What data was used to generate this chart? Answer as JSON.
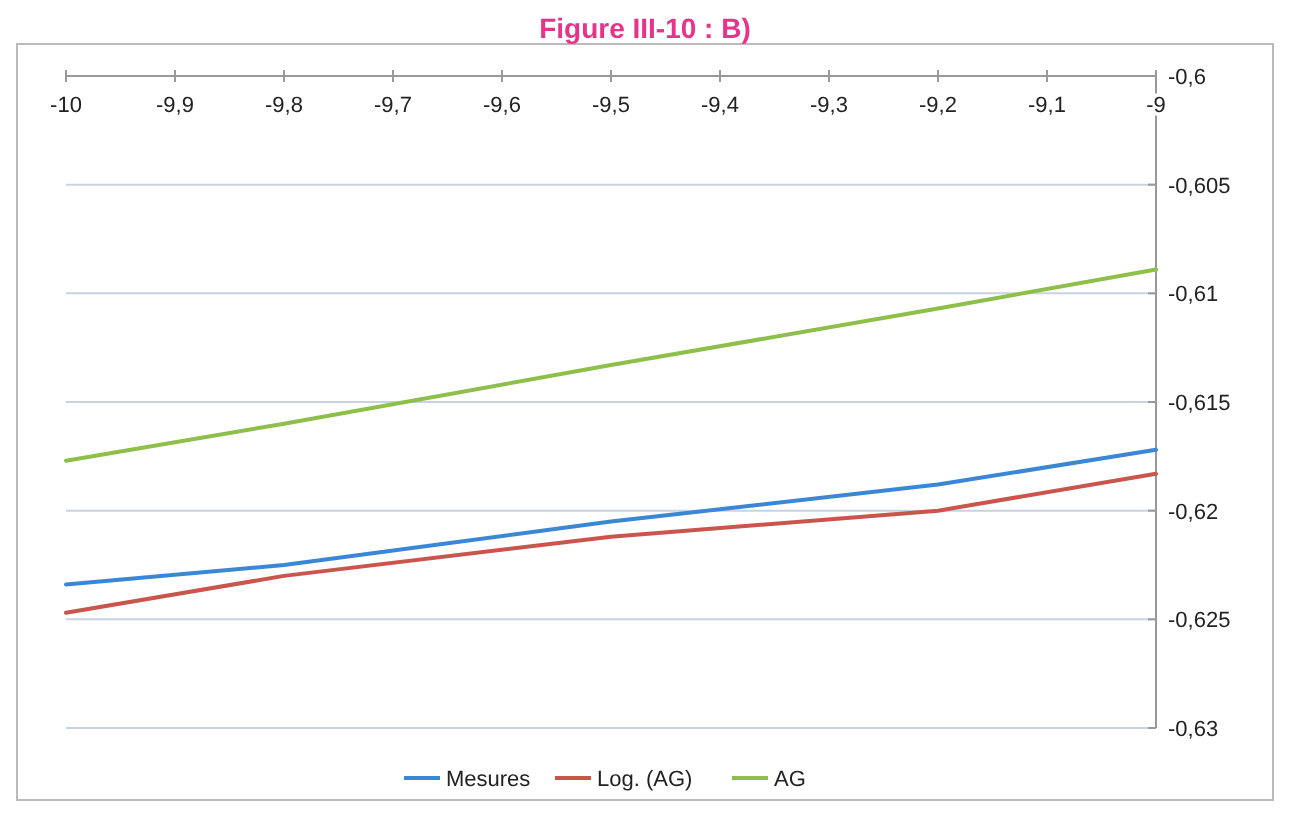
{
  "chart_data": {
    "type": "line",
    "title": "Figure III-10 : B)",
    "x": [
      -10,
      -9.8,
      -9.5,
      -9.2,
      -9
    ],
    "series": [
      {
        "name": "Mesures",
        "color": "#3a87d6",
        "values": [
          -0.6234,
          -0.6225,
          -0.6205,
          -0.6188,
          -0.6172
        ]
      },
      {
        "name": "Log. (AG)",
        "color": "#c9554c",
        "values": [
          -0.6247,
          -0.623,
          -0.6212,
          -0.62,
          -0.6183
        ]
      },
      {
        "name": "AG",
        "color": "#8dbf4a",
        "values": [
          -0.6177,
          -0.616,
          -0.6133,
          -0.6107,
          -0.6089
        ]
      }
    ],
    "xlim": [
      -10,
      -9
    ],
    "xticks": [
      {
        "value": -10,
        "label": "-10"
      },
      {
        "value": -9.9,
        "label": "-9,9"
      },
      {
        "value": -9.8,
        "label": "-9,8"
      },
      {
        "value": -9.7,
        "label": "-9,7"
      },
      {
        "value": -9.6,
        "label": "-9,6"
      },
      {
        "value": -9.5,
        "label": "-9,5"
      },
      {
        "value": -9.4,
        "label": "-9,4"
      },
      {
        "value": -9.3,
        "label": "-9,3"
      },
      {
        "value": -9.2,
        "label": "-9,2"
      },
      {
        "value": -9.1,
        "label": "-9,1"
      },
      {
        "value": -9,
        "label": "-9"
      }
    ],
    "ylim": [
      -0.63,
      -0.6
    ],
    "yticks": [
      {
        "value": -0.6,
        "label": "-0,6"
      },
      {
        "value": -0.605,
        "label": "-0,605"
      },
      {
        "value": -0.61,
        "label": "-0,61"
      },
      {
        "value": -0.615,
        "label": "-0,615"
      },
      {
        "value": -0.62,
        "label": "-0,62"
      },
      {
        "value": -0.625,
        "label": "-0,625"
      },
      {
        "value": -0.63,
        "label": "-0,63"
      }
    ],
    "grid": "y",
    "legend": "bottom",
    "marker": "none",
    "line_style": "solid"
  }
}
